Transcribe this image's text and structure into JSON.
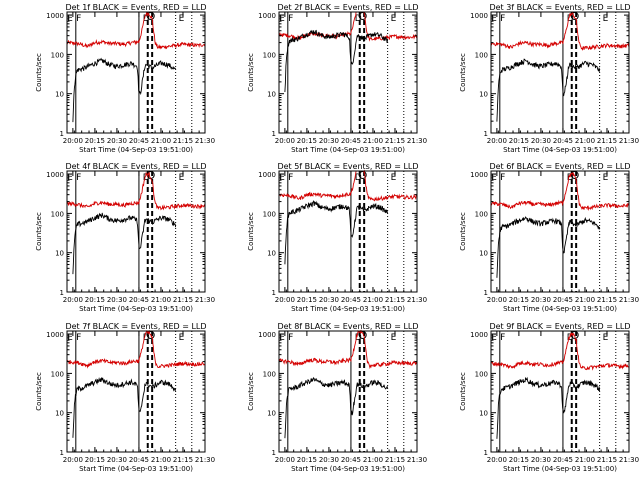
{
  "figure": {
    "panel_titles": [
      "Det 1f BLACK = Events, RED = LLD",
      "Det 2f BLACK = Events, RED = LLD",
      "Det 3f BLACK = Events, RED = LLD",
      "Det 4f BLACK = Events, RED = LLD",
      "Det 5f BLACK = Events, RED = LLD",
      "Det 6f BLACK = Events, RED = LLD",
      "Det 7f BLACK = Events, RED = LLD",
      "Det 8f BLACK = Events, RED = LLD",
      "Det 9f BLACK = Events, RED = LLD"
    ],
    "xlabel": "Start Time (04-Sep-03 19:51:00)",
    "ylabel": "Counts/sec",
    "xtick_labels": [
      "20:00",
      "20:15",
      "20:30",
      "20:45",
      "21:00",
      "21:15",
      "21:30"
    ],
    "ytick_labels": [
      "1",
      "10",
      "100",
      "1000"
    ],
    "marker_labels": [
      "E",
      "F",
      "D",
      "E"
    ],
    "colors": {
      "events": "#000000",
      "lld": "#d40000",
      "axes": "#000000"
    }
  },
  "chart_data": {
    "type": "line",
    "panel_count": 9,
    "xlim": [
      "19:56",
      "21:30"
    ],
    "ylim": [
      1,
      1200
    ],
    "yscale": "log",
    "xticks": [
      "20:00",
      "20:15",
      "20:30",
      "20:45",
      "21:00",
      "21:15",
      "21:30"
    ],
    "yticks": [
      1,
      10,
      100,
      1000
    ],
    "marker_lines": {
      "solid": [
        "20:02",
        "20:45"
      ],
      "dashed": [
        "20:51",
        "20:54"
      ],
      "dotted": [
        "21:10",
        "21:21"
      ]
    },
    "lld_profile": {
      "x": [
        "19:56",
        "20:03",
        "20:10",
        "20:15",
        "20:20",
        "20:25",
        "20:30",
        "20:35",
        "20:40",
        "20:45",
        "20:47",
        "20:49",
        "20:50",
        "20:52",
        "20:54",
        "20:56",
        "20:58",
        "21:05",
        "21:15",
        "21:25",
        "21:30"
      ],
      "y": [
        200,
        190,
        160,
        200,
        210,
        190,
        190,
        180,
        200,
        210,
        400,
        900,
        1100,
        1100,
        800,
        200,
        150,
        160,
        180,
        170,
        180
      ]
    },
    "events_profile": {
      "x": [
        "20:00",
        "20:01",
        "20:02",
        "20:03",
        "20:08",
        "20:15",
        "20:20",
        "20:25",
        "20:30",
        "20:35",
        "20:40",
        "20:44",
        "20:45",
        "20:46",
        "20:49",
        "20:50",
        "20:52",
        "20:54",
        "20:56",
        "21:00",
        "21:05",
        "21:10"
      ],
      "y": [
        2,
        15,
        30,
        40,
        45,
        60,
        70,
        55,
        50,
        55,
        60,
        50,
        10,
        10,
        50,
        55,
        50,
        45,
        50,
        60,
        55,
        40
      ]
    },
    "panels": [
      {
        "name": "Det 1f",
        "lld_scale": 1.0,
        "events_scale": 1.0
      },
      {
        "name": "Det 2f",
        "lld_scale": 1.6,
        "events_scale": 5.5
      },
      {
        "name": "Det 3f",
        "lld_scale": 0.95,
        "events_scale": 1.0
      },
      {
        "name": "Det 4f",
        "lld_scale": 0.9,
        "events_scale": 1.3
      },
      {
        "name": "Det 5f",
        "lld_scale": 1.5,
        "events_scale": 2.6
      },
      {
        "name": "Det 6f",
        "lld_scale": 0.9,
        "events_scale": 1.1
      },
      {
        "name": "Det 7f",
        "lld_scale": 1.0,
        "events_scale": 1.0
      },
      {
        "name": "Det 8f",
        "lld_scale": 1.05,
        "events_scale": 1.0
      },
      {
        "name": "Det 9f",
        "lld_scale": 0.9,
        "events_scale": 1.0
      }
    ]
  }
}
